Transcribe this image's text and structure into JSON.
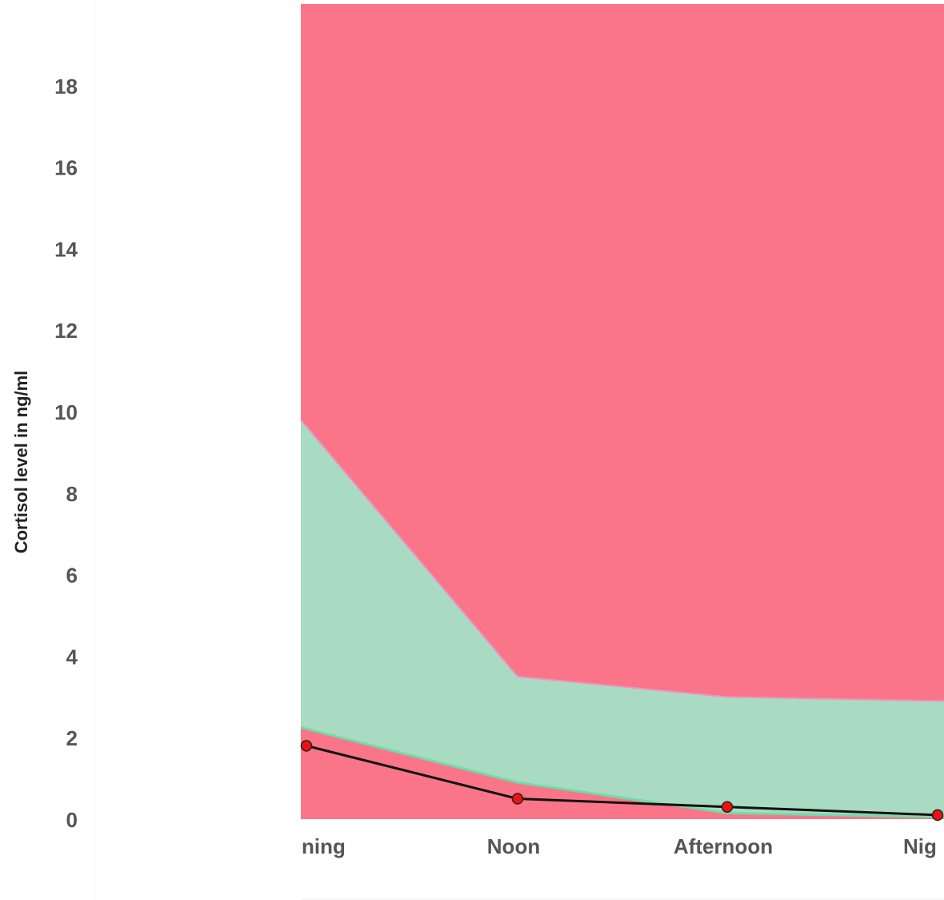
{
  "chart_data": {
    "type": "area",
    "ylabel": "Cortisol level in ng/ml",
    "ylim": [
      0,
      20
    ],
    "y_ticks": [
      0,
      2,
      4,
      6,
      8,
      10,
      12,
      14,
      16,
      18
    ],
    "categories": [
      "Morning",
      "Noon",
      "Afternoon",
      "Night"
    ],
    "visible_category_labels": [
      "ning",
      "Noon",
      "Afternoon",
      "Nig"
    ],
    "bands": [
      {
        "role": "below-normal",
        "color": "#f97587",
        "lower": [
          0,
          0,
          0,
          0
        ],
        "upper": [
          2.25,
          0.9,
          0.15,
          0.05
        ]
      },
      {
        "role": "normal",
        "color": "#a8dbc1",
        "lower": [
          2.25,
          0.9,
          0.15,
          0.05
        ],
        "upper": [
          9.8,
          3.5,
          3.0,
          2.9
        ]
      },
      {
        "role": "above-normal",
        "color": "#f97587",
        "lower": [
          9.8,
          3.5,
          3.0,
          2.9
        ],
        "upper": [
          20,
          20,
          20,
          20
        ]
      }
    ],
    "series": [
      {
        "values": [
          1.8,
          0.5,
          0.3,
          0.1
        ],
        "color": "#111111",
        "marker_color": "#ee1111"
      }
    ],
    "grid": false,
    "legend": "none"
  }
}
